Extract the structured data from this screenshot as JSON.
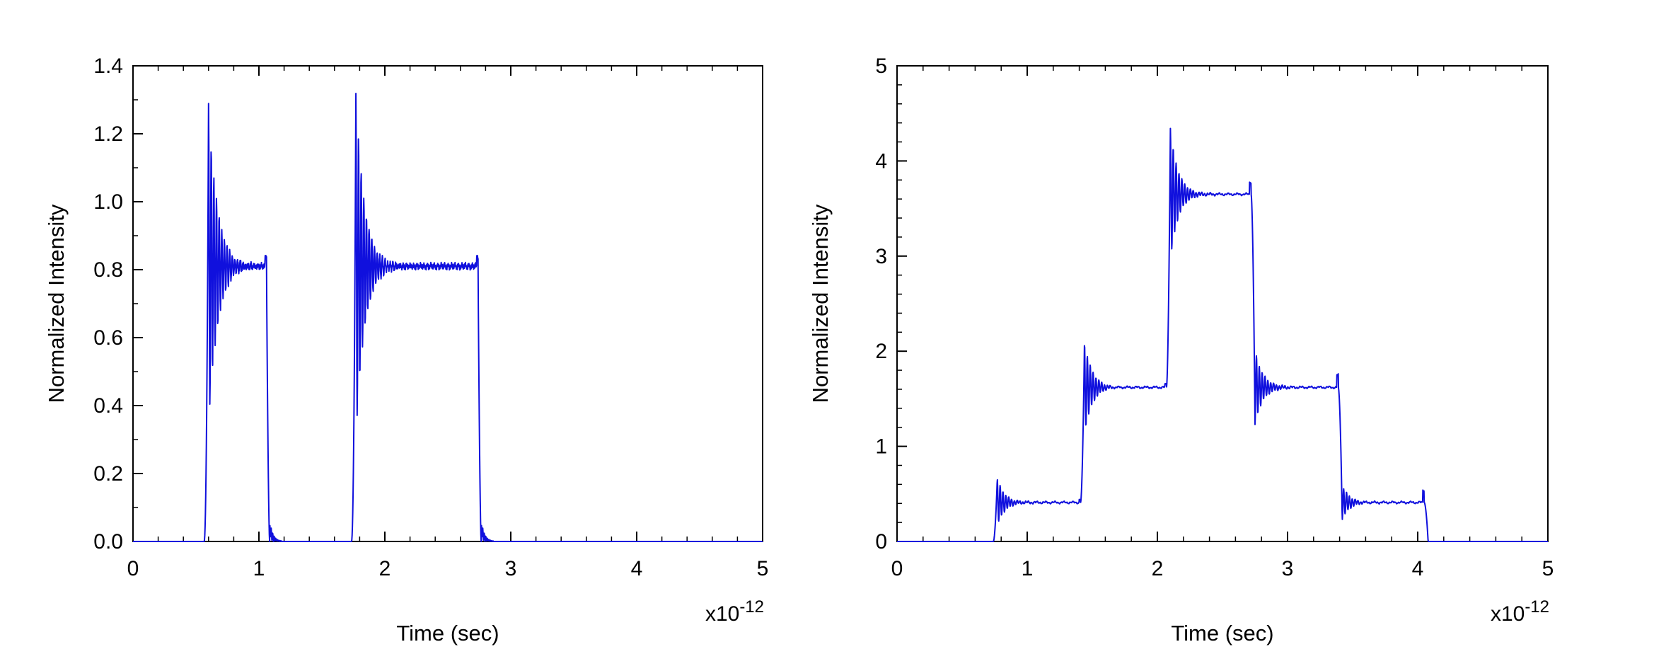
{
  "chart_data": [
    {
      "type": "line",
      "xlabel": "Time (sec)",
      "ylabel": "Normalized Intensity",
      "x_multiplier": "x10",
      "x_exponent": "-12",
      "xlim": [
        0,
        5
      ],
      "ylim": [
        0,
        1.4
      ],
      "xticks": [
        "0",
        "1",
        "2",
        "3",
        "4",
        "5"
      ],
      "yticks": [
        "0.0",
        "0.2",
        "0.4",
        "0.6",
        "0.8",
        "1.0",
        "1.2",
        "1.4"
      ],
      "x_minor_step": 0.2,
      "y_minor_step": 0.1,
      "grid": false,
      "color": "#1010dd",
      "pulses": [
        {
          "t_on": 0.6,
          "t_off": 1.06,
          "level": 0.81,
          "peak": 1.29,
          "tail": 0.065
        },
        {
          "t_on": 1.77,
          "t_off": 2.74,
          "level": 0.81,
          "peak": 1.32,
          "tail": 0.065
        }
      ]
    },
    {
      "type": "line",
      "xlabel": "Time (sec)",
      "ylabel": "Normalized Intensity",
      "x_multiplier": "x10",
      "x_exponent": "-12",
      "xlim": [
        0,
        5
      ],
      "ylim": [
        0,
        5
      ],
      "xticks": [
        "0",
        "1",
        "2",
        "3",
        "4",
        "5"
      ],
      "yticks": [
        "0",
        "1",
        "2",
        "3",
        "4",
        "5"
      ],
      "x_minor_step": 0.2,
      "y_minor_step": 0.2,
      "grid": false,
      "color": "#1010dd",
      "steps": [
        {
          "t": 0.77,
          "level": 0.41,
          "peak": 0.66
        },
        {
          "t": 1.44,
          "level": 1.62,
          "peak": 2.1
        },
        {
          "t": 2.1,
          "level": 3.65,
          "peak": 4.35
        },
        {
          "t": 2.75,
          "level": 1.62,
          "peak": 1.22
        },
        {
          "t": 3.42,
          "level": 0.41,
          "peak": 0.23
        },
        {
          "t": 4.08,
          "level": 0.0,
          "peak": 0.0
        }
      ]
    }
  ]
}
